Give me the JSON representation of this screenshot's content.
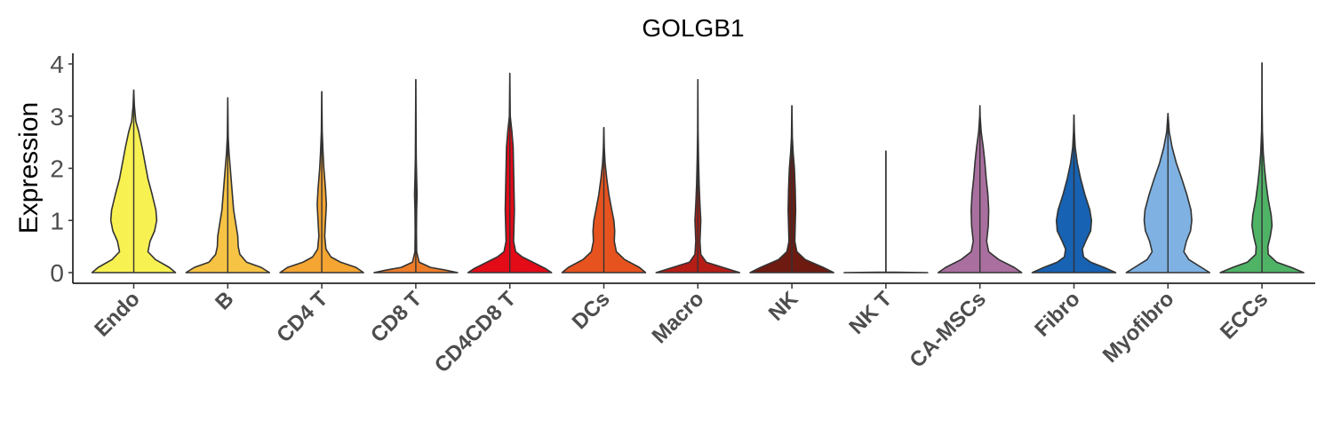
{
  "chart_data": {
    "type": "violin",
    "title": "GOLGB1",
    "ylabel": "Expression",
    "xlabel": "",
    "ylim": [
      -0.2,
      4.2
    ],
    "yticks": [
      0,
      1,
      2,
      3,
      4
    ],
    "legend": "none",
    "grid": false,
    "categories": [
      "Endo",
      "B",
      "CD4 T",
      "CD8 T",
      "CD4CD8 T",
      "DCs",
      "Macro",
      "NK",
      "NK T",
      "CA-MSCs",
      "Fibro",
      "Myofibro",
      "ECCs"
    ],
    "series": [
      {
        "category": "Endo",
        "color": "#F8F152",
        "max": 3.5,
        "profile": [
          [
            0,
            1.0
          ],
          [
            0.1,
            0.85
          ],
          [
            0.25,
            0.52
          ],
          [
            0.4,
            0.34
          ],
          [
            0.6,
            0.39
          ],
          [
            0.8,
            0.5
          ],
          [
            1.0,
            0.55
          ],
          [
            1.2,
            0.53
          ],
          [
            1.5,
            0.44
          ],
          [
            1.8,
            0.34
          ],
          [
            2.1,
            0.27
          ],
          [
            2.4,
            0.2
          ],
          [
            2.7,
            0.12
          ],
          [
            2.9,
            0.05
          ],
          [
            3.2,
            0.015
          ],
          [
            3.5,
            0.0
          ]
        ]
      },
      {
        "category": "B",
        "color": "#F7C344",
        "max": 3.35,
        "profile": [
          [
            0,
            1.0
          ],
          [
            0.1,
            0.8
          ],
          [
            0.2,
            0.45
          ],
          [
            0.35,
            0.29
          ],
          [
            0.5,
            0.25
          ],
          [
            0.7,
            0.24
          ],
          [
            0.9,
            0.2
          ],
          [
            1.2,
            0.14
          ],
          [
            1.6,
            0.1
          ],
          [
            2.0,
            0.06
          ],
          [
            2.3,
            0.03
          ],
          [
            2.6,
            0.01
          ],
          [
            3.35,
            0.0
          ]
        ]
      },
      {
        "category": "CD4 T",
        "color": "#F5A531",
        "max": 3.47,
        "profile": [
          [
            0,
            1.0
          ],
          [
            0.1,
            0.82
          ],
          [
            0.2,
            0.45
          ],
          [
            0.3,
            0.22
          ],
          [
            0.45,
            0.1
          ],
          [
            0.7,
            0.07
          ],
          [
            1.0,
            0.09
          ],
          [
            1.3,
            0.11
          ],
          [
            1.6,
            0.09
          ],
          [
            2.0,
            0.05
          ],
          [
            2.3,
            0.03
          ],
          [
            2.7,
            0.01
          ],
          [
            3.47,
            0.0
          ]
        ]
      },
      {
        "category": "CD8 T",
        "color": "#EE7D2A",
        "max": 3.7,
        "profile": [
          [
            0,
            1.0
          ],
          [
            0.05,
            0.7
          ],
          [
            0.1,
            0.35
          ],
          [
            0.2,
            0.08
          ],
          [
            0.4,
            0.02
          ],
          [
            0.8,
            0.015
          ],
          [
            1.2,
            0.02
          ],
          [
            1.5,
            0.03
          ],
          [
            1.8,
            0.02
          ],
          [
            2.2,
            0.01
          ],
          [
            3.7,
            0.0
          ]
        ]
      },
      {
        "category": "CD4CD8 T",
        "color": "#E30B17",
        "max": 3.82,
        "profile": [
          [
            0,
            1.0
          ],
          [
            0.08,
            0.85
          ],
          [
            0.2,
            0.55
          ],
          [
            0.3,
            0.3
          ],
          [
            0.4,
            0.14
          ],
          [
            0.6,
            0.09
          ],
          [
            0.9,
            0.1
          ],
          [
            1.2,
            0.11
          ],
          [
            1.6,
            0.1
          ],
          [
            2.0,
            0.09
          ],
          [
            2.4,
            0.08
          ],
          [
            2.7,
            0.05
          ],
          [
            3.0,
            0.01
          ],
          [
            3.82,
            0.0
          ]
        ]
      },
      {
        "category": "DCs",
        "color": "#E7531E",
        "max": 2.78,
        "profile": [
          [
            0,
            1.0
          ],
          [
            0.1,
            0.85
          ],
          [
            0.25,
            0.5
          ],
          [
            0.4,
            0.3
          ],
          [
            0.6,
            0.25
          ],
          [
            0.8,
            0.26
          ],
          [
            1.0,
            0.24
          ],
          [
            1.2,
            0.19
          ],
          [
            1.5,
            0.12
          ],
          [
            1.8,
            0.07
          ],
          [
            2.1,
            0.03
          ],
          [
            2.4,
            0.01
          ],
          [
            2.78,
            0.0
          ]
        ]
      },
      {
        "category": "Macro",
        "color": "#B51D16",
        "max": 3.7,
        "profile": [
          [
            0,
            1.0
          ],
          [
            0.1,
            0.6
          ],
          [
            0.2,
            0.2
          ],
          [
            0.35,
            0.07
          ],
          [
            0.6,
            0.05
          ],
          [
            1.0,
            0.07
          ],
          [
            1.3,
            0.05
          ],
          [
            1.7,
            0.03
          ],
          [
            2.2,
            0.015
          ],
          [
            2.7,
            0.005
          ],
          [
            3.7,
            0.0
          ]
        ]
      },
      {
        "category": "NK",
        "color": "#6E1A11",
        "max": 3.2,
        "profile": [
          [
            0,
            1.0
          ],
          [
            0.1,
            0.75
          ],
          [
            0.25,
            0.32
          ],
          [
            0.4,
            0.12
          ],
          [
            0.6,
            0.07
          ],
          [
            0.9,
            0.08
          ],
          [
            1.2,
            0.09
          ],
          [
            1.6,
            0.08
          ],
          [
            2.0,
            0.06
          ],
          [
            2.3,
            0.03
          ],
          [
            2.6,
            0.01
          ],
          [
            3.2,
            0.0
          ]
        ]
      },
      {
        "category": "NK T",
        "color": "#9E9E9E",
        "max": 2.33,
        "profile": [
          [
            0,
            1.0
          ],
          [
            0.01,
            0.0
          ],
          [
            2.33,
            0.0
          ]
        ]
      },
      {
        "category": "CA-MSCs",
        "color": "#A9709F",
        "max": 3.2,
        "profile": [
          [
            0,
            1.0
          ],
          [
            0.1,
            0.82
          ],
          [
            0.25,
            0.45
          ],
          [
            0.4,
            0.21
          ],
          [
            0.6,
            0.16
          ],
          [
            0.9,
            0.2
          ],
          [
            1.2,
            0.21
          ],
          [
            1.5,
            0.19
          ],
          [
            1.8,
            0.15
          ],
          [
            2.1,
            0.12
          ],
          [
            2.4,
            0.08
          ],
          [
            2.7,
            0.03
          ],
          [
            3.0,
            0.005
          ],
          [
            3.2,
            0.0
          ]
        ]
      },
      {
        "category": "Fibro",
        "color": "#1762B2",
        "max": 3.02,
        "profile": [
          [
            0,
            1.0
          ],
          [
            0.1,
            0.72
          ],
          [
            0.2,
            0.4
          ],
          [
            0.3,
            0.23
          ],
          [
            0.45,
            0.2
          ],
          [
            0.6,
            0.28
          ],
          [
            0.8,
            0.4
          ],
          [
            1.0,
            0.42
          ],
          [
            1.2,
            0.38
          ],
          [
            1.5,
            0.26
          ],
          [
            1.8,
            0.16
          ],
          [
            2.1,
            0.08
          ],
          [
            2.4,
            0.03
          ],
          [
            2.7,
            0.01
          ],
          [
            3.02,
            0.0
          ]
        ]
      },
      {
        "category": "Myofibro",
        "color": "#7FB2E3",
        "max": 3.05,
        "profile": [
          [
            0,
            1.0
          ],
          [
            0.1,
            0.8
          ],
          [
            0.25,
            0.5
          ],
          [
            0.4,
            0.38
          ],
          [
            0.6,
            0.44
          ],
          [
            0.8,
            0.54
          ],
          [
            1.0,
            0.57
          ],
          [
            1.2,
            0.55
          ],
          [
            1.5,
            0.45
          ],
          [
            1.8,
            0.33
          ],
          [
            2.1,
            0.2
          ],
          [
            2.4,
            0.1
          ],
          [
            2.7,
            0.03
          ],
          [
            3.05,
            0.0
          ]
        ]
      },
      {
        "category": "ECCs",
        "color": "#4FB366",
        "max": 4.02,
        "profile": [
          [
            0,
            1.0
          ],
          [
            0.1,
            0.7
          ],
          [
            0.2,
            0.35
          ],
          [
            0.35,
            0.15
          ],
          [
            0.5,
            0.14
          ],
          [
            0.7,
            0.2
          ],
          [
            0.9,
            0.24
          ],
          [
            1.1,
            0.22
          ],
          [
            1.4,
            0.15
          ],
          [
            1.7,
            0.1
          ],
          [
            2.0,
            0.06
          ],
          [
            2.3,
            0.03
          ],
          [
            2.7,
            0.01
          ],
          [
            3.2,
            0.003
          ],
          [
            4.02,
            0.0
          ]
        ]
      }
    ]
  }
}
